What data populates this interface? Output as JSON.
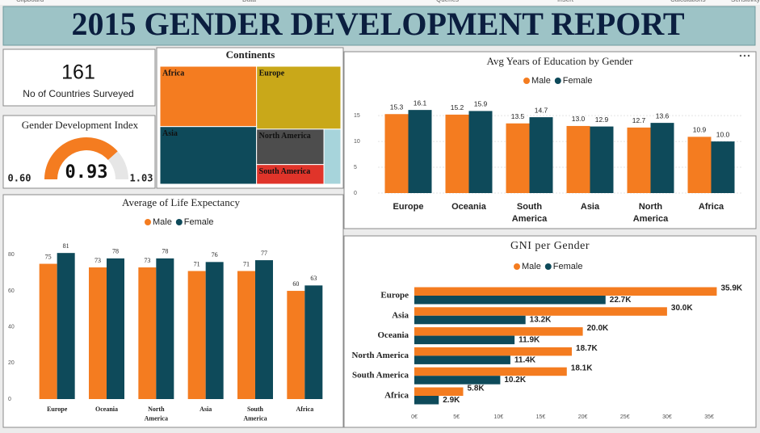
{
  "header": {
    "title": "2015 GENDER DEVELOPMENT REPORT",
    "ribbon": [
      "Clipboard",
      "Data",
      "Queries",
      "Insert",
      "Calculations",
      "Sensitivity"
    ]
  },
  "chart_data": [
    {
      "type": "card",
      "value": 161,
      "label": "No of Countries Surveyed"
    },
    {
      "type": "gauge",
      "title": "Gender Development Index",
      "value": 0.93,
      "min": {
        "value": 0.6,
        "label": "0.60"
      },
      "max": 1.03,
      "color": "#F47C20",
      "track_color": "#E6E6E6"
    },
    {
      "type": "treemap",
      "title": "Continents",
      "categories": [
        "Africa",
        "Europe",
        "Asia",
        "North America",
        "South America",
        null
      ],
      "values": [
        44,
        40,
        42,
        18,
        10,
        7
      ],
      "colors": [
        "#F47C20",
        "#C9A819",
        "#0E4A5A",
        "#4D4D4D",
        "#E0342A",
        "#A7D4DB"
      ]
    },
    {
      "type": "bar",
      "title": "Avg Years of Education by Gender",
      "categories": [
        "Europe",
        "Oceania",
        "South America",
        "Asia",
        "North America",
        "Africa"
      ],
      "series": [
        {
          "name": "Male",
          "color": "#F47C20",
          "values": [
            15.3,
            15.2,
            13.5,
            13.0,
            12.7,
            10.9
          ],
          "value_labels": [
            "15.3",
            "15.2",
            "13.5",
            "13.0",
            "12.7",
            "10.9"
          ]
        },
        {
          "name": "Female",
          "color": "#0E4A5A",
          "values": [
            16.1,
            15.9,
            14.7,
            12.9,
            13.6,
            10.0
          ],
          "value_labels": [
            "16.1",
            "15.9",
            "14.7",
            "12.9",
            "13.6",
            "10.0"
          ]
        }
      ],
      "ylim": [
        0,
        18
      ],
      "yticks": [
        0,
        5,
        10,
        15
      ],
      "grid": true
    },
    {
      "type": "bar",
      "title": "Average of Life Expectancy",
      "categories": [
        "Europe",
        "Oceania",
        "North America",
        "Asia",
        "South America",
        "Africa"
      ],
      "series": [
        {
          "name": "Male",
          "color": "#F47C20",
          "values": [
            75,
            73,
            73,
            71,
            71,
            60
          ]
        },
        {
          "name": "Female",
          "color": "#0E4A5A",
          "values": [
            81,
            78,
            78,
            76,
            77,
            63
          ]
        }
      ],
      "ylim": [
        0,
        86
      ],
      "yticks": [
        0,
        20,
        40,
        60,
        80
      ],
      "grid": false
    },
    {
      "type": "hbar",
      "title": "GNI per Gender",
      "categories": [
        "Europe",
        "Asia",
        "Oceania",
        "North America",
        "South America",
        "Africa"
      ],
      "series": [
        {
          "name": "Male",
          "color": "#F47C20",
          "values": [
            35.9,
            30.0,
            20.0,
            18.7,
            18.1,
            5.8
          ],
          "value_labels": [
            "35.9K",
            "30.0K",
            "20.0K",
            "18.7K",
            "18.1K",
            "5.8K"
          ]
        },
        {
          "name": "Female",
          "color": "#0E4A5A",
          "values": [
            22.7,
            13.2,
            11.9,
            11.4,
            10.2,
            2.9
          ],
          "value_labels": [
            "22.7K",
            "13.2K",
            "11.9K",
            "11.4K",
            "10.2K",
            "2.9K"
          ]
        }
      ],
      "xlim": [
        0,
        39.5
      ],
      "xticks": [
        {
          "value": 0,
          "label": "0€"
        },
        {
          "value": 5,
          "label": "5€"
        },
        {
          "value": 10,
          "label": "10€"
        },
        {
          "value": 15,
          "label": "15€"
        },
        {
          "value": 20,
          "label": "20€"
        },
        {
          "value": 25,
          "label": "25€"
        },
        {
          "value": 30,
          "label": "30€"
        },
        {
          "value": 35,
          "label": "35€"
        }
      ]
    }
  ]
}
